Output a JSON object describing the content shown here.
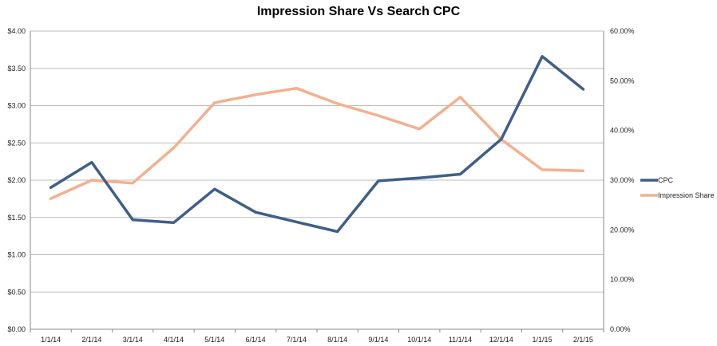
{
  "chart_data": {
    "type": "line",
    "title": "Impression Share Vs Search CPC",
    "categories": [
      "1/1/14",
      "2/1/14",
      "3/1/14",
      "4/1/14",
      "5/1/14",
      "6/1/14",
      "7/1/14",
      "8/1/14",
      "9/1/14",
      "10/1/14",
      "11/1/14",
      "12/1/14",
      "1/1/15",
      "2/1/15"
    ],
    "y_left": {
      "ylim": [
        0,
        4
      ],
      "ticks": [
        0,
        0.5,
        1,
        1.5,
        2,
        2.5,
        3,
        3.5,
        4
      ],
      "tick_labels": [
        "$0.00",
        "$0.50",
        "$1.00",
        "$1.50",
        "$2.00",
        "$2.50",
        "$3.00",
        "$3.50",
        "$4.00"
      ]
    },
    "y_right": {
      "ylim": [
        0,
        60
      ],
      "ticks": [
        0,
        10,
        20,
        30,
        40,
        50,
        60
      ],
      "tick_labels": [
        "0.00%",
        "10.00%",
        "20.00%",
        "30.00%",
        "40.00%",
        "50.00%",
        "60.00%"
      ]
    },
    "series": [
      {
        "name": "CPC",
        "axis": "left",
        "color": "#3e5f8a",
        "values": [
          1.9,
          2.24,
          1.47,
          1.43,
          1.88,
          1.57,
          1.44,
          1.31,
          1.99,
          2.03,
          2.08,
          2.55,
          3.66,
          3.22
        ]
      },
      {
        "name": "Impression Share",
        "axis": "right",
        "color": "#f4b08d",
        "values": [
          26.3,
          30.0,
          29.4,
          36.5,
          45.6,
          47.2,
          48.5,
          45.4,
          43.0,
          40.3,
          46.7,
          38.2,
          32.1,
          31.9
        ]
      }
    ],
    "grid": true,
    "legend": "right"
  }
}
